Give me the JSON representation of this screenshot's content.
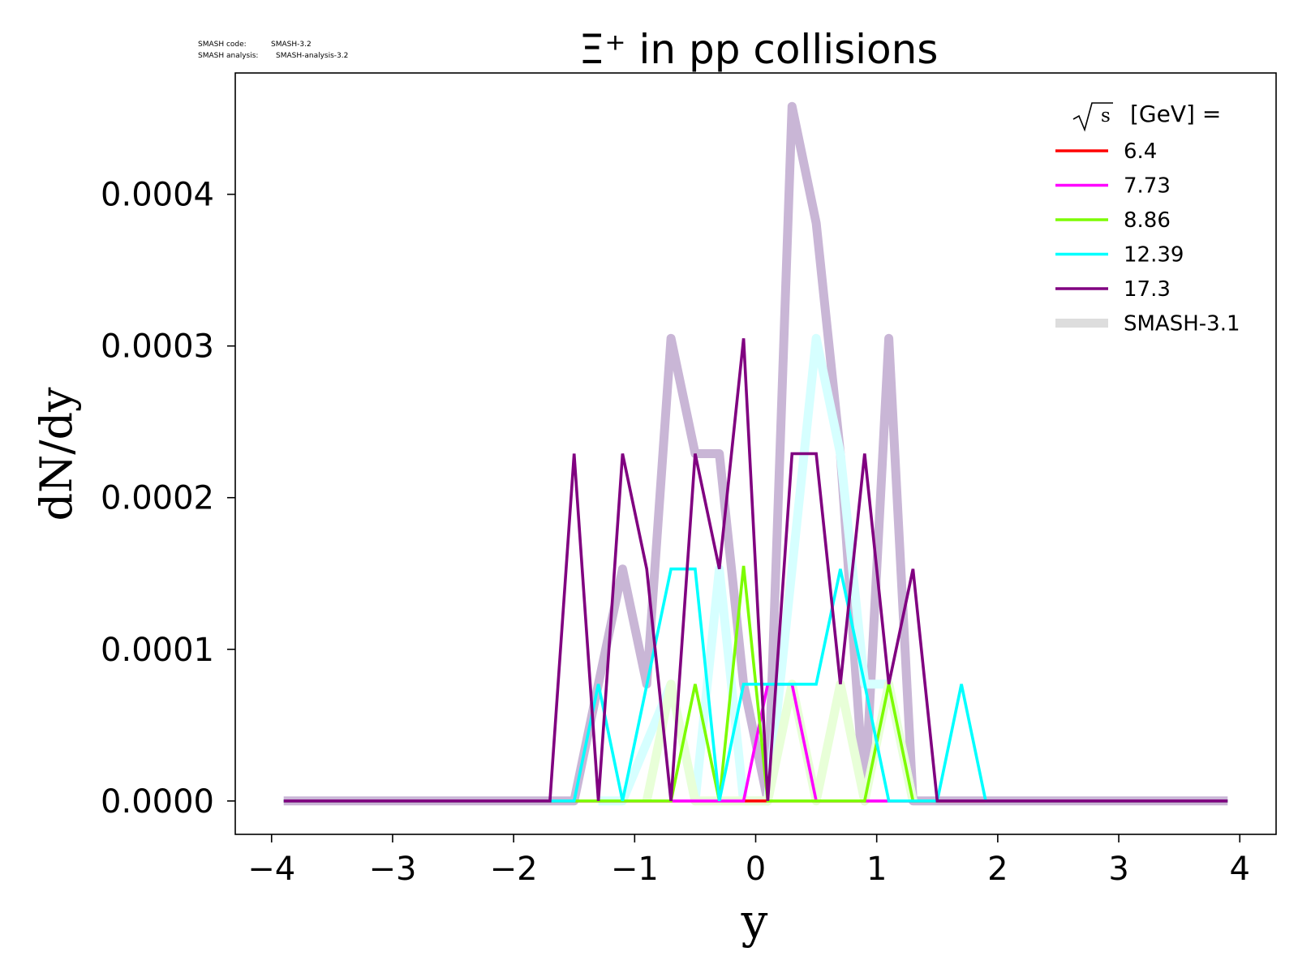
{
  "meta_text": {
    "line1_label": "SMASH code:",
    "line1_value": "SMASH-3.2",
    "line2_label": "SMASH analysis:",
    "line2_value": "SMASH-analysis-3.2"
  },
  "chart_data": {
    "type": "line",
    "title": "Ξ⁺ in pp collisions",
    "xlabel": "y",
    "ylabel": "dN/dy",
    "xlim": [
      -4.3,
      4.3
    ],
    "ylim": [
      -2.2e-05,
      0.00048
    ],
    "xticks": [
      -4,
      -3,
      -2,
      -1,
      0,
      1,
      2,
      3,
      4
    ],
    "xtick_labels": [
      "−4",
      "−3",
      "−2",
      "−1",
      "0",
      "1",
      "2",
      "3",
      "4"
    ],
    "yticks": [
      0,
      0.0001,
      0.0002,
      0.0003,
      0.0004
    ],
    "ytick_labels": [
      "0.0000",
      "0.0001",
      "0.0002",
      "0.0003",
      "0.0004"
    ],
    "grid": false,
    "legend": {
      "placement": "top-right",
      "title_sqrt": "s",
      "title_suffix": "[GeV] ="
    },
    "series": [
      {
        "name": "6.4",
        "color": "#ff0000",
        "x": [
          -3.9,
          -0.1,
          0.1,
          3.9
        ],
        "y": [
          0,
          0,
          0,
          0
        ]
      },
      {
        "name": "7.73",
        "color": "#ff00ff",
        "x": [
          -3.9,
          -0.1,
          0.1,
          0.3,
          0.5,
          3.9
        ],
        "y": [
          0,
          0,
          7.7e-05,
          7.7e-05,
          0,
          0
        ]
      },
      {
        "name": "8.86",
        "color": "#7cfc00",
        "x": [
          -3.9,
          -0.7,
          -0.5,
          -0.3,
          -0.1,
          0.1,
          0.9,
          1.1,
          1.3,
          3.9
        ],
        "y": [
          0,
          0,
          7.7e-05,
          0,
          0.000155,
          0,
          0,
          7.7e-05,
          0,
          0
        ]
      },
      {
        "name": "12.39",
        "color": "#00ffff",
        "x": [
          -3.9,
          -1.5,
          -1.3,
          -1.1,
          -0.7,
          -0.5,
          -0.3,
          -0.1,
          0.5,
          0.7,
          0.9,
          1.1,
          1.5,
          1.7,
          1.9,
          3.9
        ],
        "y": [
          0,
          0,
          7.7e-05,
          0,
          0.000153,
          0.000153,
          0,
          7.7e-05,
          7.7e-05,
          0.000153,
          7.7e-05,
          0,
          0,
          7.7e-05,
          0,
          0
        ]
      },
      {
        "name": "17.3",
        "color": "#800080",
        "x": [
          -3.9,
          -1.7,
          -1.5,
          -1.3,
          -1.1,
          -0.9,
          -0.7,
          -0.5,
          -0.3,
          -0.1,
          0.1,
          0.3,
          0.5,
          0.7,
          0.9,
          1.1,
          1.3,
          1.5,
          3.9
        ],
        "y": [
          0,
          0,
          0.000229,
          0,
          0.000229,
          0.000153,
          0,
          0.000229,
          0.000153,
          0.000305,
          0,
          0.000229,
          0.000229,
          7.7e-05,
          0.000229,
          7.7e-05,
          0.000153,
          0,
          0
        ]
      }
    ],
    "reference": {
      "name": "SMASH-3.1",
      "legend_color": "#dddddd",
      "series": [
        {
          "color": "#c9b6d6",
          "x": [
            -3.9,
            -1.5,
            -1.3,
            -1.1,
            -0.9,
            -0.7,
            -0.5,
            -0.3,
            -0.1,
            0.1,
            0.3,
            0.5,
            0.7,
            0.9,
            1.1,
            1.3,
            3.9
          ],
          "y": [
            0,
            0,
            7.7e-05,
            0.000153,
            7.7e-05,
            0.000305,
            0.000229,
            0.000229,
            7.7e-05,
            0,
            0.000458,
            0.000381,
            0.000229,
            0,
            0.000305,
            0,
            0
          ]
        },
        {
          "color": "#d6ffff",
          "x": [
            -1.3,
            -1.1,
            -0.7,
            -0.5,
            -0.3,
            -0.1,
            0.1,
            0.3,
            0.5,
            0.7,
            0.9,
            1.1,
            1.3
          ],
          "y": [
            0,
            0,
            7.7e-05,
            0,
            0.000153,
            0,
            0,
            0.000153,
            0.000305,
            0.000229,
            7.7e-05,
            7.7e-05,
            0
          ]
        },
        {
          "color": "#e8ffd8",
          "x": [
            -0.9,
            -0.7,
            -0.5,
            -0.3,
            -0.1,
            0.1,
            0.3,
            0.5,
            0.7,
            0.9,
            1.1,
            1.3
          ],
          "y": [
            0,
            7.7e-05,
            0,
            0,
            0,
            0,
            7.7e-05,
            0,
            7.7e-05,
            0,
            7.7e-05,
            0
          ]
        }
      ]
    }
  }
}
